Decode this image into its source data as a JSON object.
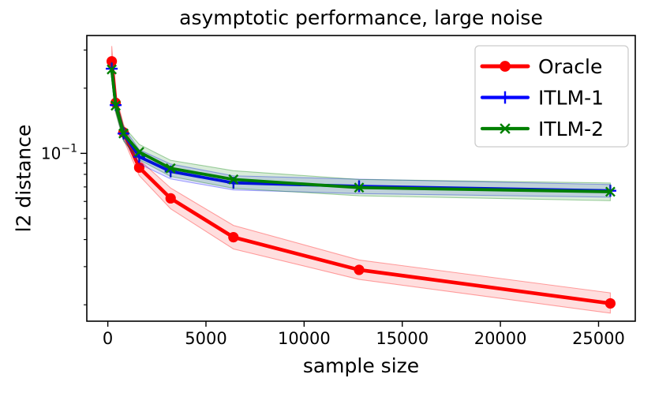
{
  "chart_data": {
    "type": "line",
    "title": "asymptotic performance, large noise",
    "xlabel": "sample size",
    "ylabel": "l2 distance",
    "xscale": "linear",
    "yscale": "log",
    "grid": false,
    "xlim": [
      -1070,
      26870
    ],
    "ylim": [
      0.0168,
      0.35
    ],
    "x": [
      200,
      400,
      800,
      1600,
      3200,
      6400,
      12800,
      25600
    ],
    "xtick_values": [
      0,
      5000,
      10000,
      15000,
      20000,
      25000
    ],
    "xtick_labels": [
      "0",
      "5000",
      "10000",
      "15000",
      "20000",
      "25000"
    ],
    "ytick_major": {
      "value": 0.1,
      "label_base": "10",
      "label_exp": "−1"
    },
    "ytick_minor_values": [
      0.02,
      0.03,
      0.04,
      0.05,
      0.06,
      0.07,
      0.08,
      0.09,
      0.2,
      0.3
    ],
    "legend": {
      "position": "upper right"
    },
    "series": [
      {
        "name": "Oracle",
        "color": "#ff0000",
        "marker": "circle",
        "values": [
          0.266,
          0.171,
          0.125,
          0.086,
          0.062,
          0.041,
          0.029,
          0.0203
        ],
        "band_lo": [
          0.232,
          0.156,
          0.116,
          0.079,
          0.0555,
          0.0362,
          0.0262,
          0.0183
        ],
        "band_hi": [
          0.313,
          0.188,
          0.136,
          0.0935,
          0.0692,
          0.0465,
          0.0322,
          0.0227
        ]
      },
      {
        "name": "ITLM-1",
        "color": "#0000ff",
        "marker": "plus",
        "values": [
          0.246,
          0.167,
          0.1235,
          0.0965,
          0.0825,
          0.0731,
          0.0705,
          0.0672
        ],
        "band_lo": [
          0.23,
          0.157,
          0.1155,
          0.0895,
          0.0762,
          0.0678,
          0.0652,
          0.0628
        ],
        "band_hi": [
          0.264,
          0.178,
          0.132,
          0.104,
          0.0893,
          0.0788,
          0.076,
          0.0718
        ]
      },
      {
        "name": "ITLM-2",
        "color": "#008000",
        "marker": "x",
        "values": [
          0.244,
          0.166,
          0.1235,
          0.1015,
          0.0853,
          0.0758,
          0.0695,
          0.0665
        ],
        "band_lo": [
          0.225,
          0.154,
          0.114,
          0.0935,
          0.0783,
          0.069,
          0.0637,
          0.0605
        ],
        "band_hi": [
          0.265,
          0.179,
          0.1335,
          0.11,
          0.0929,
          0.0832,
          0.0758,
          0.073
        ]
      }
    ]
  }
}
